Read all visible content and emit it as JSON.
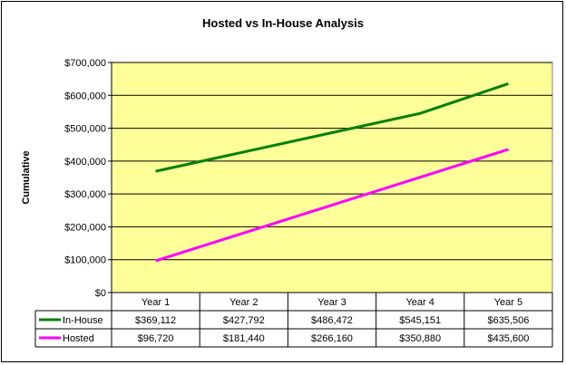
{
  "chart_data": {
    "type": "line",
    "title": "Hosted vs In-House Analysis",
    "ylabel": "Cumulative",
    "xlabel": "",
    "categories": [
      "Year 1",
      "Year 2",
      "Year 3",
      "Year 4",
      "Year 5"
    ],
    "ylim": [
      0,
      700000
    ],
    "yticks": [
      0,
      100000,
      200000,
      300000,
      400000,
      500000,
      600000,
      700000
    ],
    "ytick_labels": [
      "$0",
      "$100,000",
      "$200,000",
      "$300,000",
      "$400,000",
      "$500,000",
      "$600,000",
      "$700,000"
    ],
    "grid": true,
    "legend": "data-table",
    "plot_background": "#ffff99",
    "series": [
      {
        "name": "In-House",
        "color": "#008000",
        "values": [
          369112,
          427792,
          486472,
          545151,
          635506
        ],
        "labels": [
          "$369,112",
          "$427,792",
          "$486,472",
          "$545,151",
          "$635,506"
        ]
      },
      {
        "name": "Hosted",
        "color": "#ff00ff",
        "values": [
          96720,
          181440,
          266160,
          350880,
          435600
        ],
        "labels": [
          "$96,720",
          "$181,440",
          "$266,160",
          "$350,880",
          "$435,600"
        ]
      }
    ]
  }
}
